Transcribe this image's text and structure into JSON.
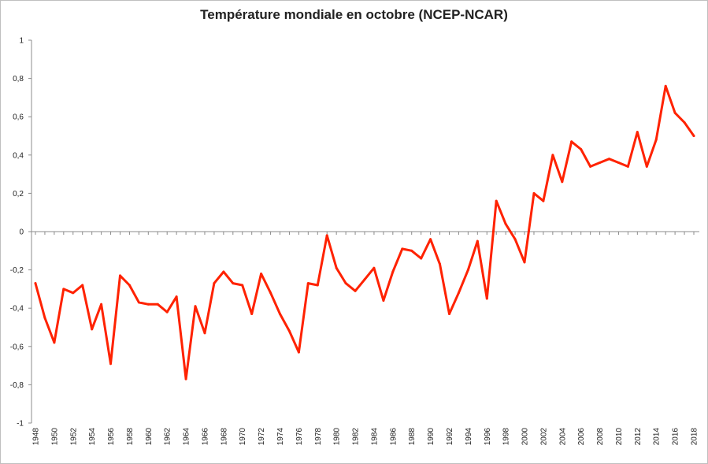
{
  "chart_data": {
    "type": "line",
    "title": "Température mondiale en octobre (NCEP-NCAR)",
    "xlabel": "",
    "ylabel": "",
    "ylim": [
      -1,
      1
    ],
    "y_ticks": [
      "1",
      "0,8",
      "0,6",
      "0,4",
      "0,2",
      "0",
      "-0,2",
      "-0,4",
      "-0,6",
      "-0,8",
      "-1"
    ],
    "x_tick_labels": [
      "1948",
      "1950",
      "1952",
      "1954",
      "1956",
      "1958",
      "1960",
      "1962",
      "1964",
      "1966",
      "1968",
      "1970",
      "1972",
      "1974",
      "1976",
      "1978",
      "1980",
      "1982",
      "1984",
      "1986",
      "1988",
      "1990",
      "1992",
      "1994",
      "1996",
      "1998",
      "2000",
      "2002",
      "2004",
      "2006",
      "2008",
      "2010",
      "2012",
      "2014",
      "2016",
      "2018"
    ],
    "grid": false,
    "line_color": "#ff2200",
    "series": [
      {
        "x": [
          1948,
          1949,
          1950,
          1951,
          1952,
          1953,
          1954,
          1955,
          1956,
          1957,
          1958,
          1959,
          1960,
          1961,
          1962,
          1963,
          1964,
          1965,
          1966,
          1967,
          1968,
          1969,
          1970,
          1971,
          1972,
          1973,
          1974,
          1975,
          1976,
          1977,
          1978,
          1979,
          1980,
          1981,
          1982,
          1983,
          1984,
          1985,
          1986,
          1987,
          1988,
          1989,
          1990,
          1991,
          1992,
          1993,
          1994,
          1995,
          1996,
          1997,
          1998,
          1999,
          2000,
          2001,
          2002,
          2003,
          2004,
          2005,
          2006,
          2007,
          2008,
          2009,
          2010,
          2011,
          2012,
          2013,
          2014,
          2015,
          2016,
          2017,
          2018
        ],
        "values": [
          -0.27,
          -0.45,
          -0.58,
          -0.3,
          -0.32,
          -0.28,
          -0.51,
          -0.38,
          -0.69,
          -0.23,
          -0.28,
          -0.37,
          -0.38,
          -0.38,
          -0.42,
          -0.34,
          -0.77,
          -0.39,
          -0.53,
          -0.27,
          -0.21,
          -0.27,
          -0.28,
          -0.43,
          -0.22,
          -0.32,
          -0.43,
          -0.52,
          -0.63,
          -0.27,
          -0.28,
          -0.02,
          -0.19,
          -0.27,
          -0.31,
          -0.25,
          -0.19,
          -0.36,
          -0.21,
          -0.09,
          -0.1,
          -0.14,
          -0.04,
          -0.17,
          -0.43,
          -0.32,
          -0.2,
          -0.05,
          -0.35,
          0.16,
          0.04,
          -0.04,
          -0.16,
          0.2,
          0.16,
          0.4,
          0.26,
          0.47,
          0.43,
          0.34,
          0.36,
          0.38,
          0.36,
          0.34,
          0.52,
          0.34,
          0.48,
          0.76,
          0.62,
          0.57,
          0.5
        ]
      }
    ]
  }
}
